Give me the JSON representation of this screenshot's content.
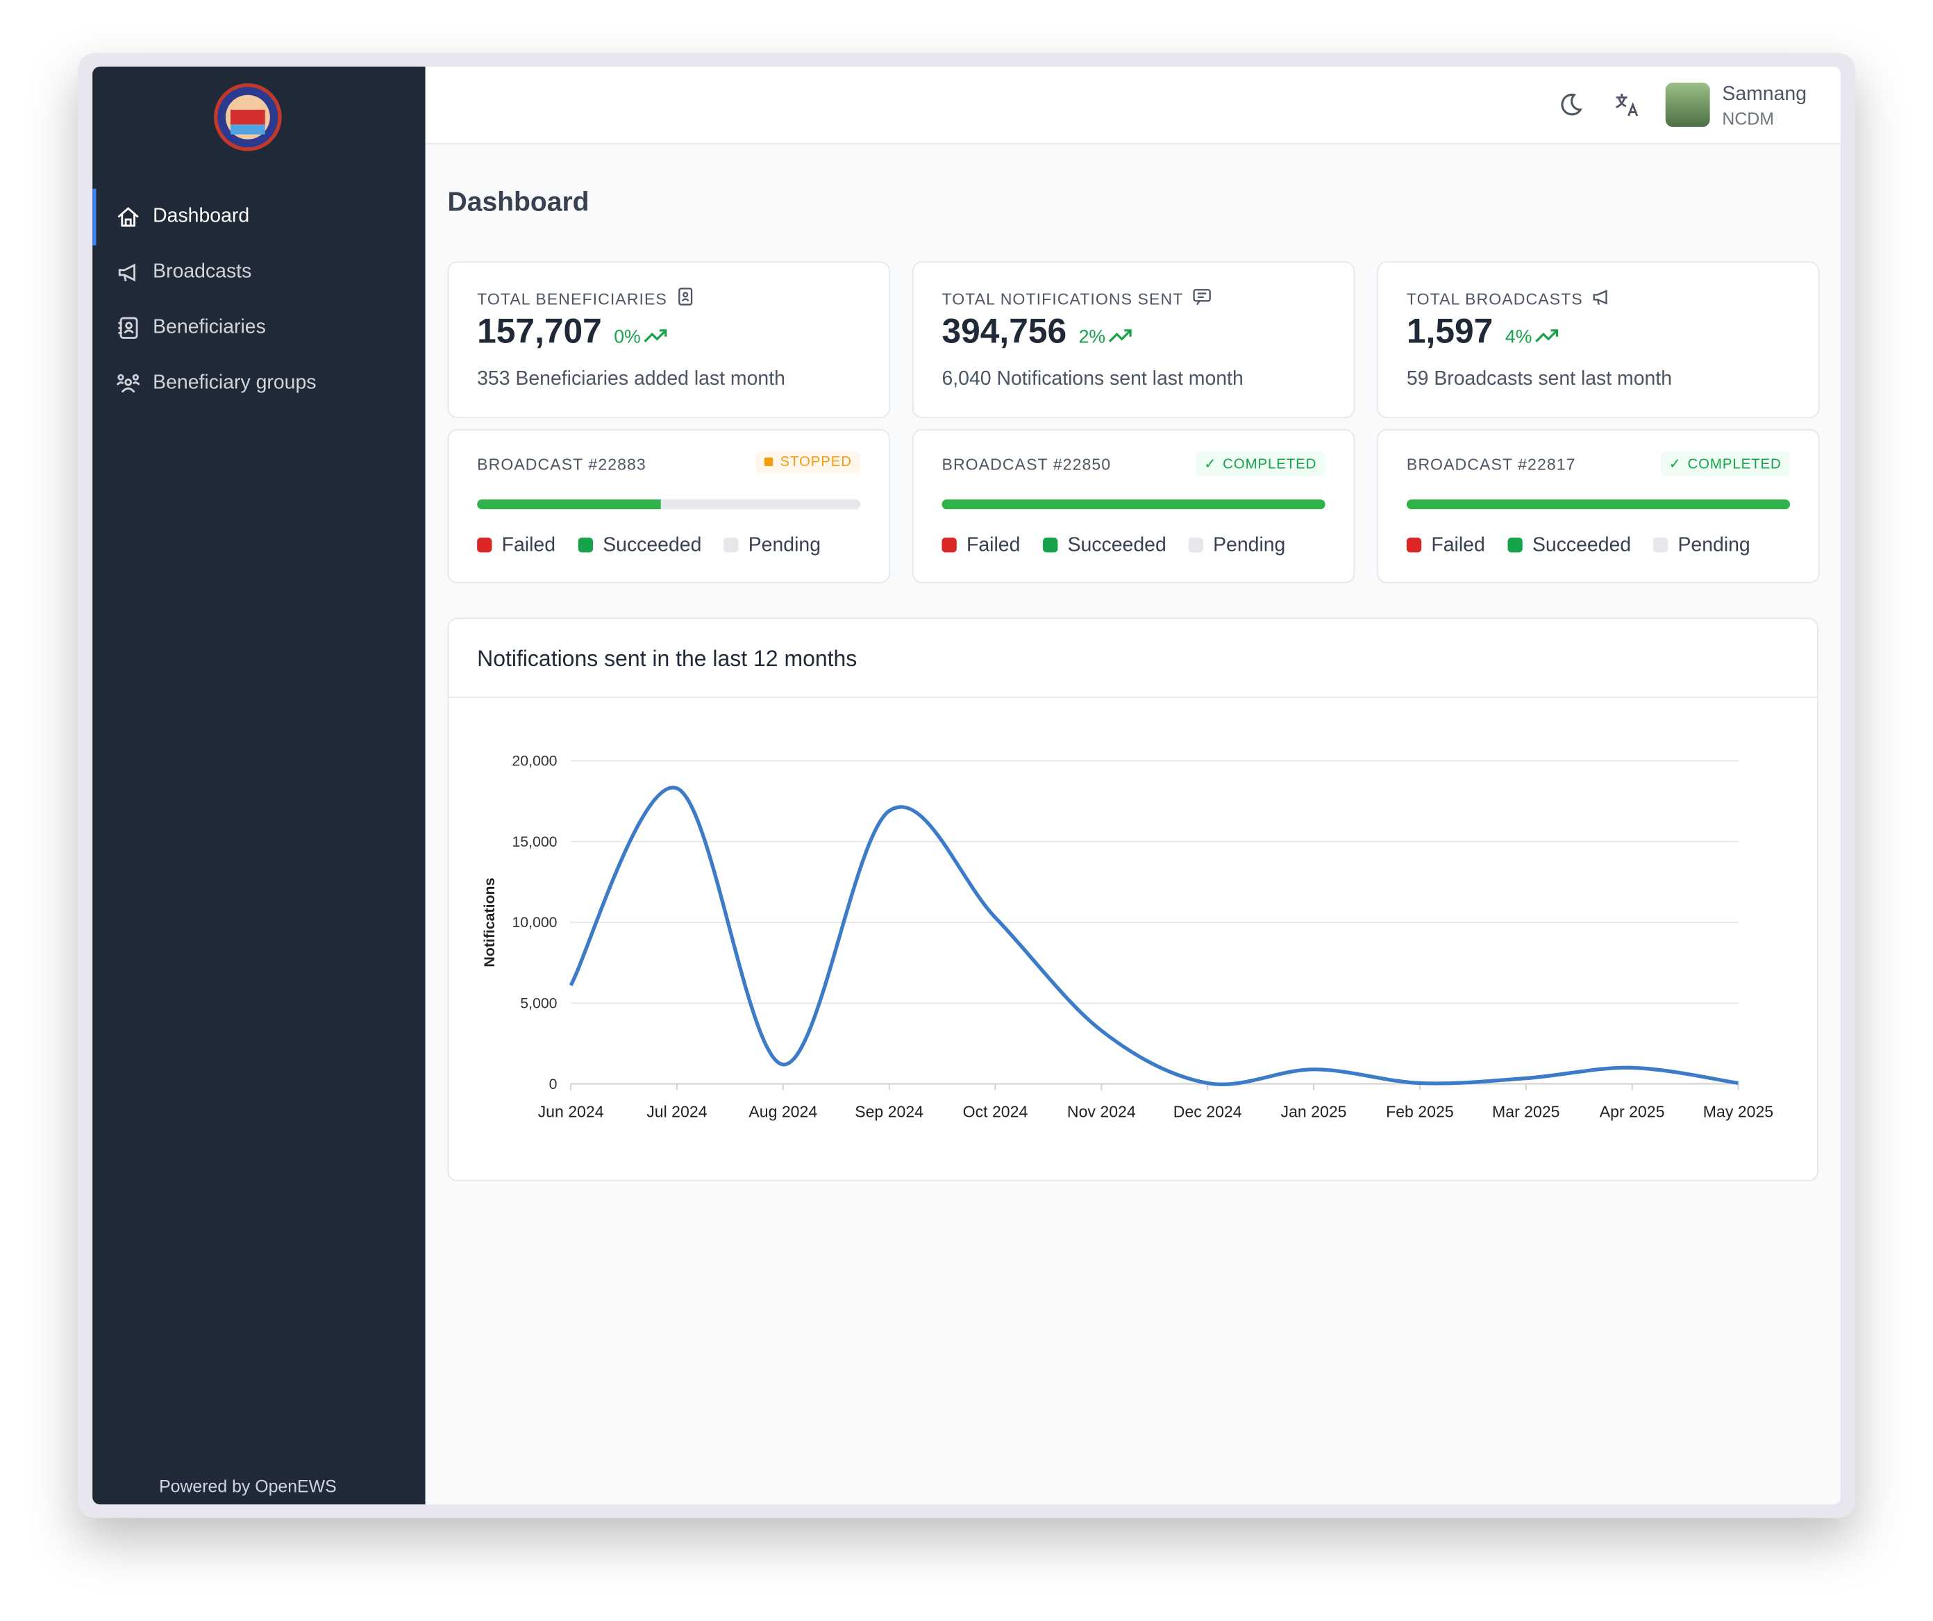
{
  "brand": {
    "footer": "Powered by OpenEWS"
  },
  "nav": {
    "items": [
      "Dashboard",
      "Broadcasts",
      "Beneficiaries",
      "Beneficiary groups"
    ]
  },
  "header": {
    "user_name": "Samnang",
    "user_org": "NCDM"
  },
  "page": {
    "title": "Dashboard"
  },
  "stats": [
    {
      "label": "TOTAL BENEFICIARIES",
      "value": "157,707",
      "change": "0%",
      "note": "353 Beneficiaries added last month"
    },
    {
      "label": "TOTAL NOTIFICATIONS SENT",
      "value": "394,756",
      "change": "2%",
      "note": "6,040 Notifications sent last month"
    },
    {
      "label": "TOTAL BROADCASTS",
      "value": "1,597",
      "change": "4%",
      "note": "59 Broadcasts sent last month"
    }
  ],
  "broadcasts": [
    {
      "name": "BROADCAST #22883",
      "status": "STOPPED",
      "progress": 48
    },
    {
      "name": "BROADCAST #22850",
      "status": "COMPLETED",
      "progress": 100
    },
    {
      "name": "BROADCAST #22817",
      "status": "COMPLETED",
      "progress": 100
    }
  ],
  "legend": [
    "Failed",
    "Succeeded",
    "Pending"
  ],
  "chart_data": {
    "type": "line",
    "title": "Notifications sent in the last 12 months",
    "y_label": "Notifications",
    "categories": [
      "Jun 2024",
      "Jul 2024",
      "Aug 2024",
      "Sep 2024",
      "Oct 2024",
      "Nov 2024",
      "Dec 2024",
      "Jan 2025",
      "Feb 2025",
      "Mar 2025",
      "Apr 2025",
      "May 2025"
    ],
    "values": [
      6100,
      18300,
      1200,
      16900,
      10300,
      3300,
      50,
      900,
      50,
      350,
      1000,
      50
    ],
    "color": "#3b7bc8",
    "ylim": [
      0,
      20000
    ],
    "yticks": [
      0,
      {
        "value": 5000,
        "label": "5,000"
      },
      {
        "value": 10000,
        "label": "10,000"
      },
      {
        "value": 15000,
        "label": "15,000"
      },
      {
        "value": 20000,
        "label": "20,000"
      }
    ],
    "grid": true
  }
}
